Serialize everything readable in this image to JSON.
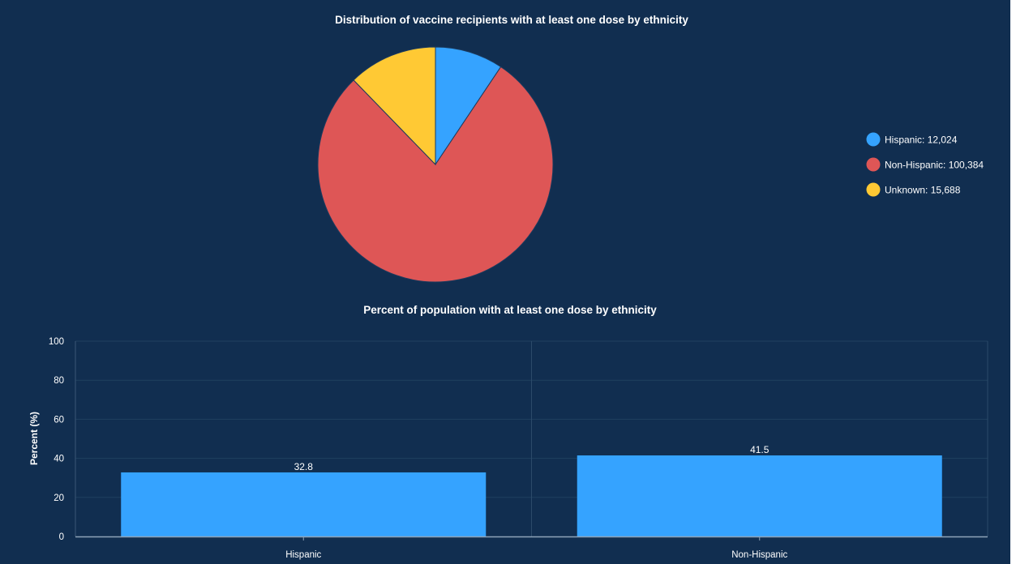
{
  "chart_data": [
    {
      "type": "pie",
      "title": "Distribution of vaccine recipients with at least one dose by ethnicity",
      "legend_position": "right",
      "slices": [
        {
          "label": "Hispanic",
          "display": "12,024",
          "value": 12024,
          "color": "#35a3ff"
        },
        {
          "label": "Non-Hispanic",
          "display": "100,384",
          "value": 100384,
          "color": "#de5656"
        },
        {
          "label": "Unknown",
          "display": "15,688",
          "value": 15688,
          "color": "#ffc934"
        }
      ]
    },
    {
      "type": "bar",
      "title": "Percent of population with at least one dose by ethnicity",
      "xlabel": "",
      "ylabel": "Percent (%)",
      "ylim": [
        0,
        100
      ],
      "yticks": [
        0,
        20,
        40,
        60,
        80,
        100
      ],
      "grid": true,
      "categories": [
        "Hispanic",
        "Non-Hispanic"
      ],
      "values": [
        32.8,
        41.5
      ],
      "value_labels": [
        "32.8",
        "41.5"
      ],
      "color": "#35a3ff"
    }
  ]
}
